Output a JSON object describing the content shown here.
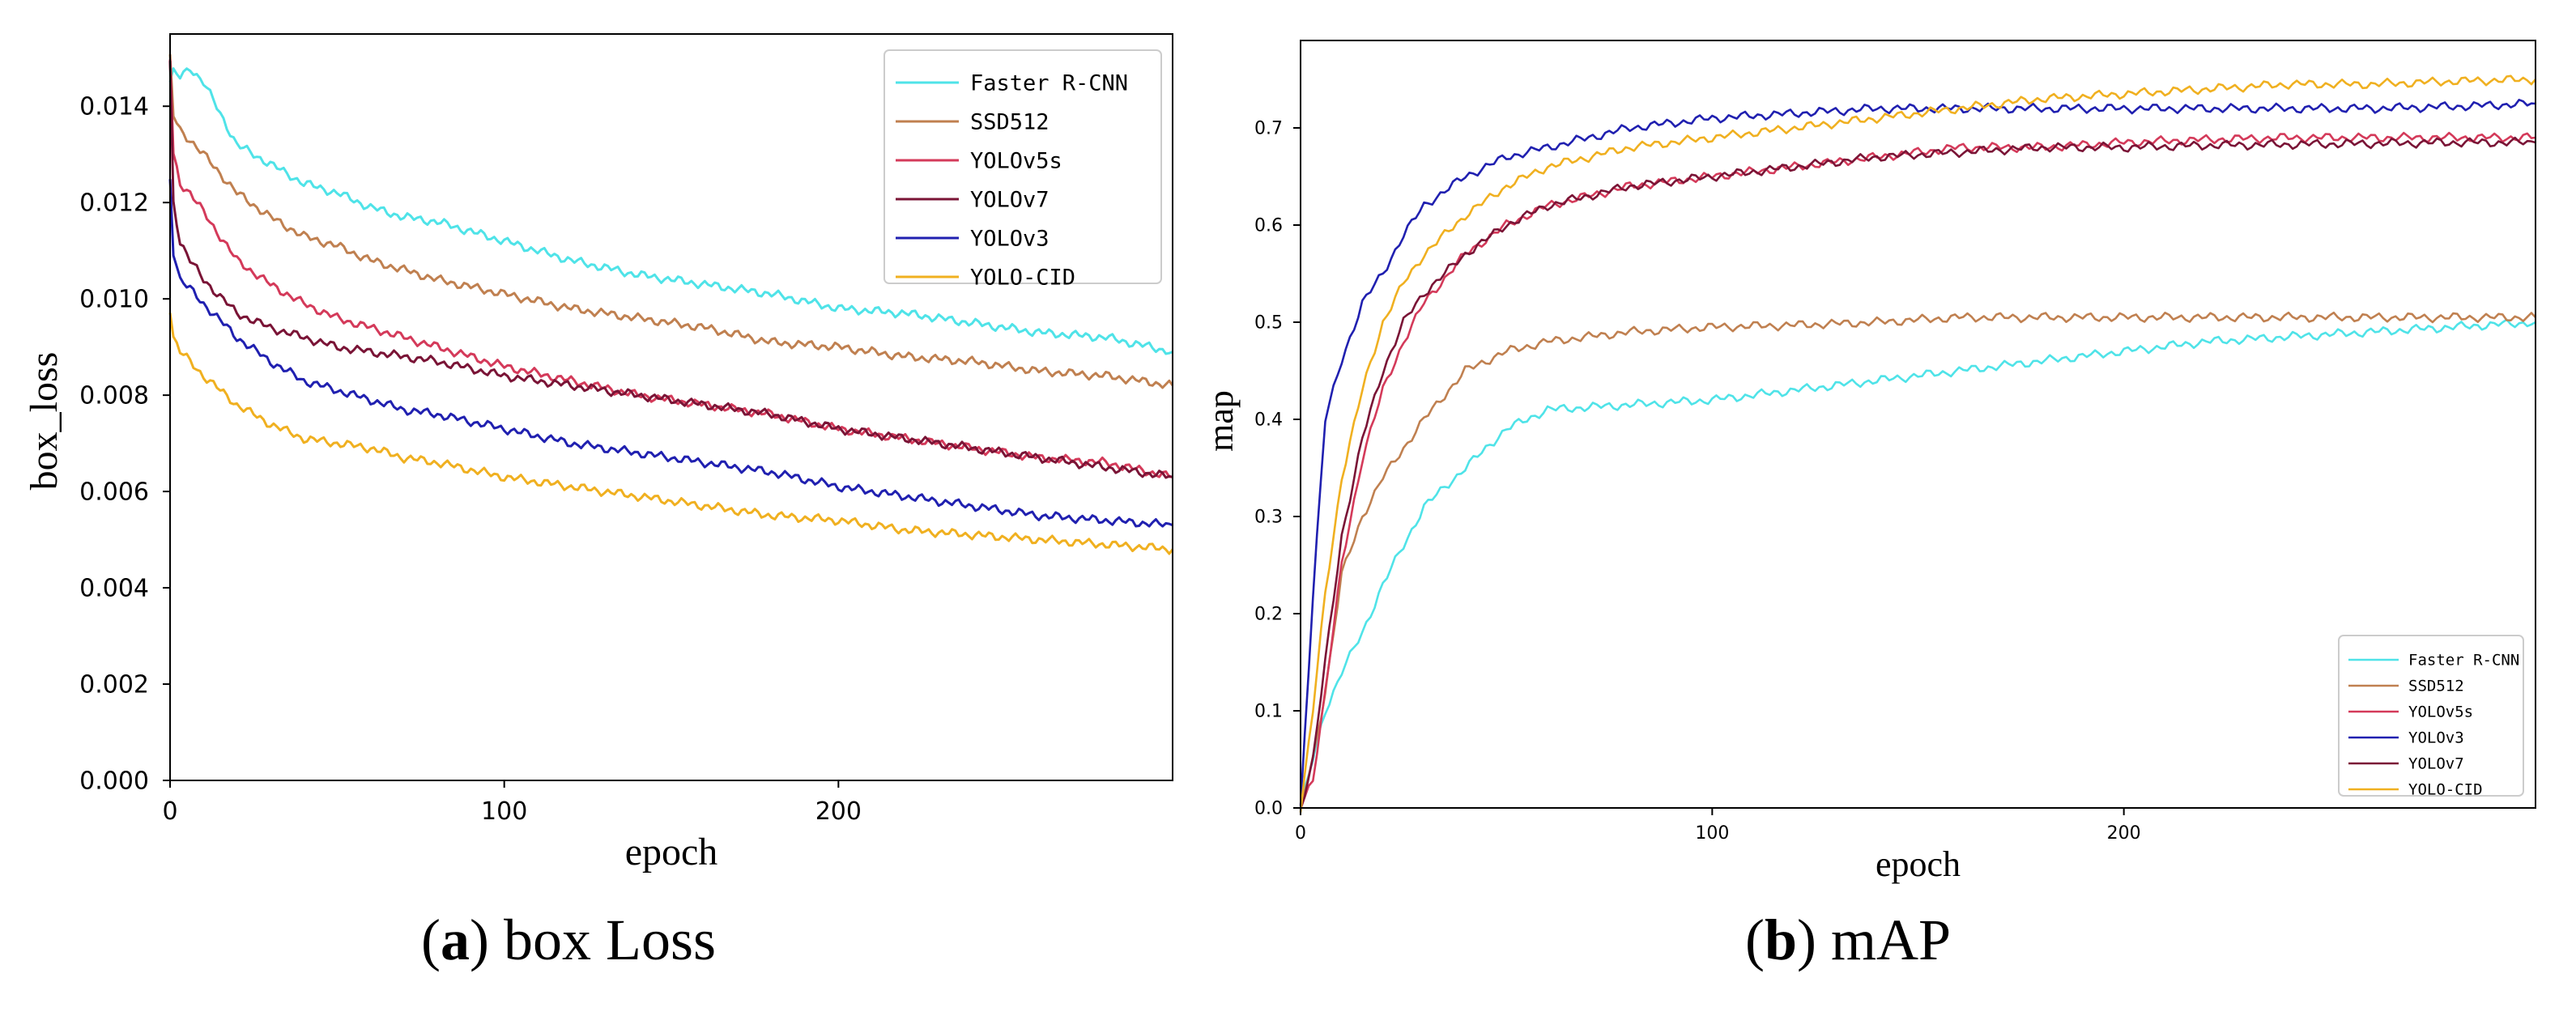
{
  "chart_data": [
    {
      "type": "line",
      "title": "",
      "xlabel": "epoch",
      "ylabel": "box_loss",
      "xlim": [
        0,
        300
      ],
      "ylim": [
        0.0,
        0.0155
      ],
      "xticks": [
        0,
        100,
        200
      ],
      "xtick_labels": [
        "0",
        "100",
        "200"
      ],
      "yticks": [
        0.0,
        0.002,
        0.004,
        0.006,
        0.008,
        0.01,
        0.012,
        0.014
      ],
      "ytick_labels": [
        "0.000",
        "0.002",
        "0.004",
        "0.006",
        "0.008",
        "0.010",
        "0.012",
        "0.014"
      ],
      "legend_position": "top-right",
      "x": [
        0,
        1,
        3,
        6,
        10,
        20,
        30,
        40,
        50,
        60,
        70,
        80,
        100,
        120,
        140,
        160,
        180,
        200,
        220,
        240,
        260,
        280,
        300
      ],
      "series": [
        {
          "name": "Faster R-CNN",
          "color": "#4fe3e8",
          "values": [
            0.0145,
            0.0147,
            0.0146,
            0.0148,
            0.0145,
            0.0132,
            0.0128,
            0.0124,
            0.0122,
            0.0119,
            0.0117,
            0.0116,
            0.0112,
            0.0108,
            0.0105,
            0.0103,
            0.0101,
            0.0098,
            0.0097,
            0.0095,
            0.0093,
            0.0092,
            0.0089
          ]
        },
        {
          "name": "SSD512",
          "color": "#c08050",
          "values": [
            0.015,
            0.0138,
            0.0135,
            0.0133,
            0.013,
            0.0122,
            0.0117,
            0.0113,
            0.0111,
            0.0108,
            0.0106,
            0.0104,
            0.0101,
            0.0098,
            0.0096,
            0.0094,
            0.0091,
            0.009,
            0.0088,
            0.0087,
            0.0085,
            0.0084,
            0.0082
          ]
        },
        {
          "name": "YOLOv5s",
          "color": "#d43a5a",
          "values": [
            0.015,
            0.013,
            0.0124,
            0.0122,
            0.0118,
            0.0108,
            0.0103,
            0.0099,
            0.0096,
            0.0094,
            0.0092,
            0.009,
            0.0086,
            0.0083,
            0.008,
            0.0078,
            0.0076,
            0.0073,
            0.0071,
            0.0069,
            0.0067,
            0.0066,
            0.0063
          ]
        },
        {
          "name": "YOLOv7",
          "color": "#7a1436",
          "values": [
            0.0149,
            0.012,
            0.0112,
            0.0108,
            0.0104,
            0.0097,
            0.0094,
            0.0092,
            0.009,
            0.0089,
            0.0088,
            0.0087,
            0.0084,
            0.0082,
            0.008,
            0.0078,
            0.0076,
            0.0073,
            0.0071,
            0.0069,
            0.0067,
            0.0065,
            0.0063
          ]
        },
        {
          "name": "YOLOv3",
          "color": "#2020b0",
          "values": [
            0.0125,
            0.011,
            0.0104,
            0.0102,
            0.0099,
            0.0092,
            0.0087,
            0.0083,
            0.0081,
            0.0079,
            0.0077,
            0.0076,
            0.0073,
            0.007,
            0.0068,
            0.0066,
            0.0064,
            0.0061,
            0.0059,
            0.0057,
            0.0055,
            0.0054,
            0.0053
          ]
        },
        {
          "name": "YOLO-CID",
          "color": "#f0b020",
          "values": [
            0.0098,
            0.0092,
            0.0089,
            0.0087,
            0.0084,
            0.0078,
            0.0074,
            0.0071,
            0.007,
            0.0069,
            0.0067,
            0.0066,
            0.0063,
            0.0061,
            0.0059,
            0.0057,
            0.0055,
            0.0054,
            0.0052,
            0.0051,
            0.005,
            0.0049,
            0.0048
          ]
        }
      ]
    },
    {
      "type": "line",
      "title": "",
      "xlabel": "epoch",
      "ylabel": "map",
      "xlim": [
        0,
        300
      ],
      "ylim": [
        0.0,
        0.79
      ],
      "xticks": [
        0,
        100,
        200
      ],
      "xtick_labels": [
        "0",
        "100",
        "200"
      ],
      "yticks": [
        0.0,
        0.1,
        0.2,
        0.3,
        0.4,
        0.5,
        0.6,
        0.7
      ],
      "ytick_labels": [
        "0.0",
        "0.1",
        "0.2",
        "0.3",
        "0.4",
        "0.5",
        "0.6",
        "0.7"
      ],
      "legend_position": "bottom-right",
      "x": [
        0,
        3,
        6,
        10,
        15,
        20,
        25,
        30,
        40,
        50,
        60,
        80,
        100,
        120,
        140,
        160,
        180,
        200,
        220,
        240,
        260,
        280,
        300
      ],
      "series": [
        {
          "name": "Faster R-CNN",
          "color": "#4fe3e8",
          "values": [
            0.0,
            0.05,
            0.1,
            0.14,
            0.18,
            0.23,
            0.27,
            0.31,
            0.35,
            0.39,
            0.41,
            0.415,
            0.42,
            0.43,
            0.44,
            0.45,
            0.46,
            0.47,
            0.48,
            0.485,
            0.49,
            0.495,
            0.5
          ]
        },
        {
          "name": "SSD512",
          "color": "#c08050",
          "values": [
            0.0,
            0.05,
            0.12,
            0.24,
            0.3,
            0.34,
            0.37,
            0.4,
            0.45,
            0.47,
            0.48,
            0.49,
            0.495,
            0.497,
            0.5,
            0.505,
            0.505,
            0.505,
            0.505,
            0.505,
            0.505,
            0.505,
            0.505
          ]
        },
        {
          "name": "YOLOv5s",
          "color": "#d43a5a",
          "values": [
            0.0,
            0.03,
            0.12,
            0.25,
            0.36,
            0.43,
            0.48,
            0.52,
            0.57,
            0.6,
            0.62,
            0.64,
            0.65,
            0.66,
            0.67,
            0.68,
            0.68,
            0.685,
            0.688,
            0.69,
            0.69,
            0.69,
            0.69
          ]
        },
        {
          "name": "YOLOv3",
          "color": "#2020b0",
          "values": [
            0.0,
            0.22,
            0.4,
            0.46,
            0.52,
            0.55,
            0.59,
            0.62,
            0.65,
            0.67,
            0.68,
            0.7,
            0.71,
            0.715,
            0.72,
            0.72,
            0.72,
            0.72,
            0.72,
            0.72,
            0.72,
            0.722,
            0.725
          ]
        },
        {
          "name": "YOLOv7",
          "color": "#7a1436",
          "values": [
            0.0,
            0.05,
            0.15,
            0.28,
            0.38,
            0.45,
            0.5,
            0.53,
            0.57,
            0.6,
            0.62,
            0.64,
            0.65,
            0.66,
            0.67,
            0.675,
            0.68,
            0.68,
            0.682,
            0.683,
            0.684,
            0.685,
            0.685
          ]
        },
        {
          "name": "YOLO-CID",
          "color": "#f0b020",
          "values": [
            0.0,
            0.1,
            0.22,
            0.34,
            0.43,
            0.5,
            0.54,
            0.57,
            0.61,
            0.64,
            0.66,
            0.68,
            0.69,
            0.7,
            0.71,
            0.72,
            0.73,
            0.735,
            0.74,
            0.745,
            0.745,
            0.748,
            0.75
          ]
        }
      ]
    }
  ],
  "captions": {
    "a": {
      "label": "a",
      "text": "box Loss"
    },
    "b": {
      "label": "b",
      "text": "mAP"
    }
  }
}
